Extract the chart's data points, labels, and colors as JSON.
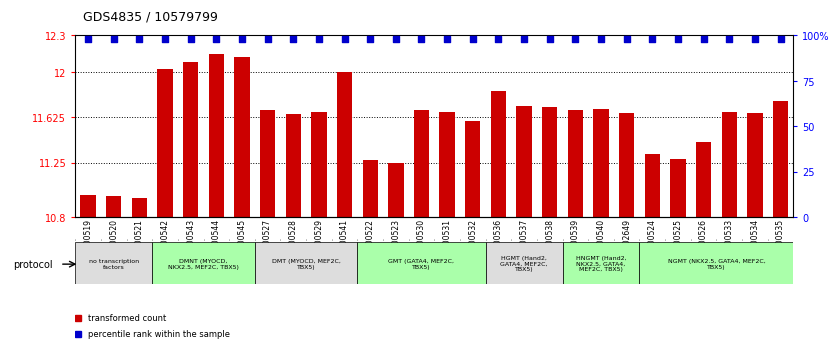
{
  "title": "GDS4835 / 10579799",
  "samples": [
    "GSM1100519",
    "GSM1100520",
    "GSM1100521",
    "GSM1100542",
    "GSM1100543",
    "GSM1100544",
    "GSM1100545",
    "GSM1100527",
    "GSM1100528",
    "GSM1100529",
    "GSM1100541",
    "GSM1100522",
    "GSM1100523",
    "GSM1100530",
    "GSM1100531",
    "GSM1100532",
    "GSM1100536",
    "GSM1100537",
    "GSM1100538",
    "GSM1100539",
    "GSM1100540",
    "GSM1102649",
    "GSM1100524",
    "GSM1100525",
    "GSM1100526",
    "GSM1100533",
    "GSM1100534",
    "GSM1100535"
  ],
  "bar_values": [
    10.98,
    10.97,
    10.96,
    12.02,
    12.08,
    12.15,
    12.12,
    11.68,
    11.65,
    11.67,
    12.0,
    11.27,
    11.25,
    11.68,
    11.67,
    11.595,
    11.84,
    11.72,
    11.71,
    11.68,
    11.69,
    11.655,
    11.32,
    11.275,
    11.42,
    11.67,
    11.655,
    11.76
  ],
  "ymin": 10.8,
  "ymax": 12.3,
  "yticks": [
    10.8,
    11.25,
    11.625,
    12.0,
    12.3
  ],
  "ytick_labels": [
    "10.8",
    "11.25",
    "11.625",
    "12",
    "12.3"
  ],
  "right_yticks": [
    0,
    25,
    50,
    75,
    100
  ],
  "right_ytick_labels": [
    "0",
    "25",
    "50",
    "75",
    "100%"
  ],
  "bar_color": "#cc0000",
  "dot_color": "#0000cc",
  "protocol_groups": [
    {
      "label": "no transcription\nfactors",
      "start": 0,
      "end": 3,
      "color": "#dddddd"
    },
    {
      "label": "DMNT (MYOCD,\nNKX2.5, MEF2C, TBX5)",
      "start": 3,
      "end": 7,
      "color": "#aaffaa"
    },
    {
      "label": "DMT (MYOCD, MEF2C,\nTBX5)",
      "start": 7,
      "end": 11,
      "color": "#dddddd"
    },
    {
      "label": "GMT (GATA4, MEF2C,\nTBX5)",
      "start": 11,
      "end": 16,
      "color": "#aaffaa"
    },
    {
      "label": "HGMT (Hand2,\nGATA4, MEF2C,\nTBX5)",
      "start": 16,
      "end": 19,
      "color": "#dddddd"
    },
    {
      "label": "HNGMT (Hand2,\nNKX2.5, GATA4,\nMEF2C, TBX5)",
      "start": 19,
      "end": 22,
      "color": "#aaffaa"
    },
    {
      "label": "NGMT (NKX2.5, GATA4, MEF2C,\nTBX5)",
      "start": 22,
      "end": 28,
      "color": "#aaffaa"
    }
  ]
}
